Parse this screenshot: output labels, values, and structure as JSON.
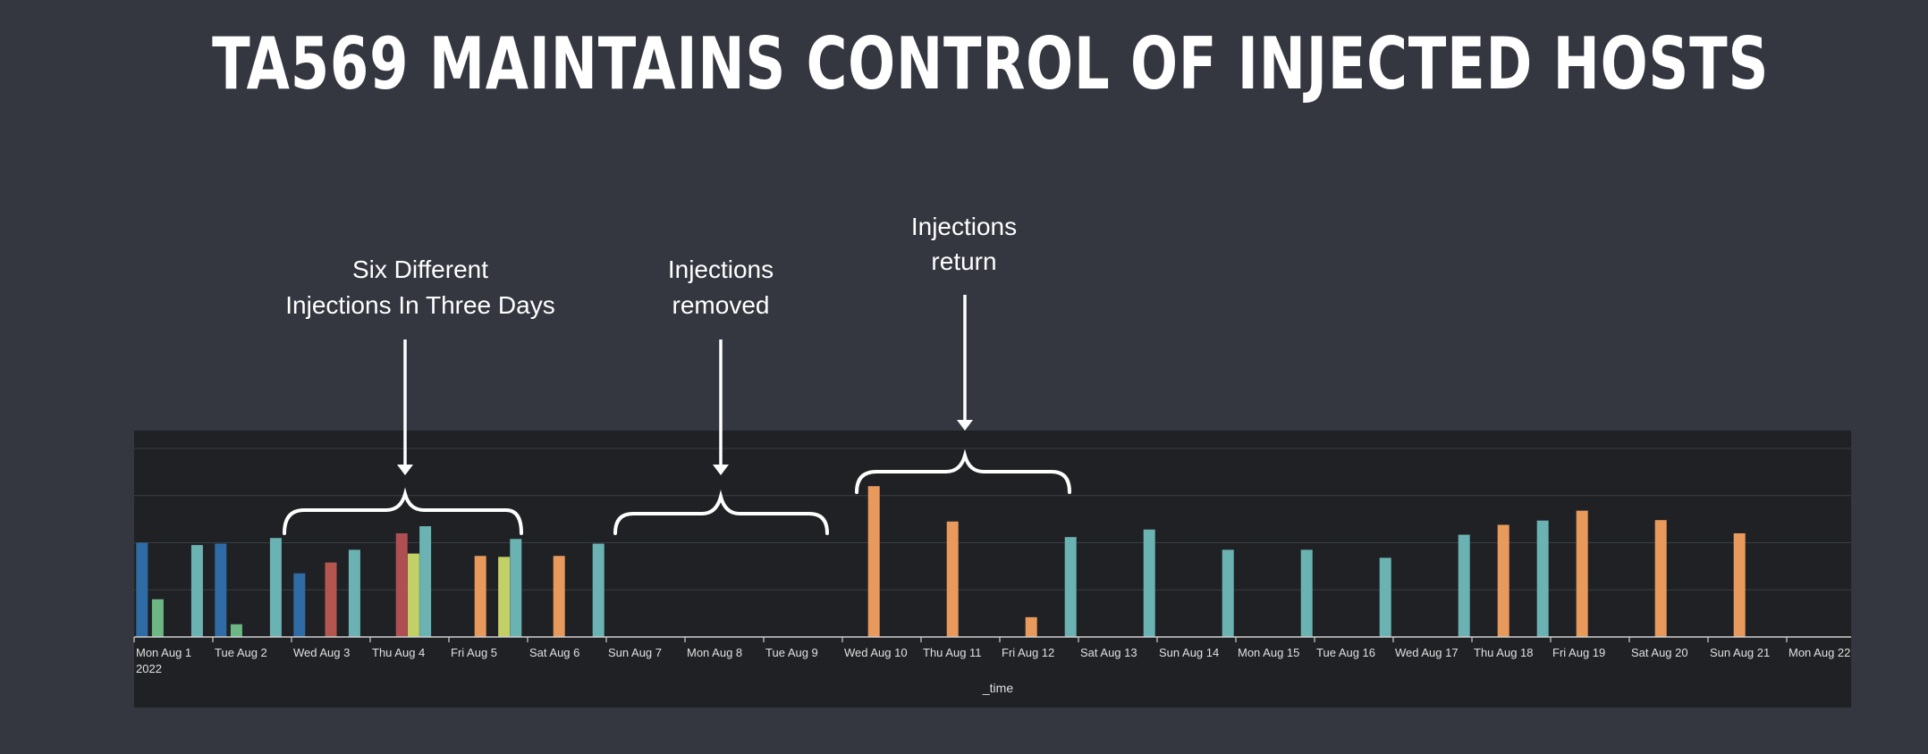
{
  "header": {
    "title": "TA569 MAINTAINS CONTROL OF INJECTED HOSTS"
  },
  "annotations": [
    {
      "lines": [
        "Six Different",
        "Injections In Three Days"
      ]
    },
    {
      "lines": [
        "Injections",
        "removed"
      ]
    },
    {
      "lines": [
        "Injections",
        "return"
      ]
    }
  ],
  "chart_data": {
    "type": "bar",
    "title": "TA569 MAINTAINS CONTROL OF INJECTED HOSTS",
    "xlabel": "_time",
    "ylabel": "",
    "grid": true,
    "ylim": [
      0,
      4
    ],
    "x_ticks": [
      {
        "day": 1,
        "label": "Mon Aug 1",
        "sub": "2022"
      },
      {
        "day": 2,
        "label": "Tue Aug 2"
      },
      {
        "day": 3,
        "label": "Wed Aug 3"
      },
      {
        "day": 4,
        "label": "Thu Aug 4"
      },
      {
        "day": 5,
        "label": "Fri Aug 5"
      },
      {
        "day": 6,
        "label": "Sat Aug 6"
      },
      {
        "day": 7,
        "label": "Sun Aug 7"
      },
      {
        "day": 8,
        "label": "Mon Aug 8"
      },
      {
        "day": 9,
        "label": "Tue Aug 9"
      },
      {
        "day": 10,
        "label": "Wed Aug 10"
      },
      {
        "day": 11,
        "label": "Thu Aug 11"
      },
      {
        "day": 12,
        "label": "Fri Aug 12"
      },
      {
        "day": 13,
        "label": "Sat Aug 13"
      },
      {
        "day": 14,
        "label": "Sun Aug 14"
      },
      {
        "day": 15,
        "label": "Mon Aug 15"
      },
      {
        "day": 16,
        "label": "Tue Aug 16"
      },
      {
        "day": 17,
        "label": "Wed Aug 17"
      },
      {
        "day": 18,
        "label": "Thu Aug 18"
      },
      {
        "day": 19,
        "label": "Fri Aug 19"
      },
      {
        "day": 20,
        "label": "Sat Aug 20"
      },
      {
        "day": 21,
        "label": "Sun Aug 21"
      },
      {
        "day": 22,
        "label": "Mon Aug 22"
      }
    ],
    "series_colors": {
      "blue": "#2f6ca6",
      "green": "#6cb784",
      "teal": "#6bb3b3",
      "red": "#b35650",
      "darkred": "#b04f52",
      "yellowgreen": "#c2d065",
      "orange": "#e8995c"
    },
    "bars": [
      {
        "day": 1.1,
        "value": 2.0,
        "color": "blue"
      },
      {
        "day": 1.3,
        "value": 0.8,
        "color": "green"
      },
      {
        "day": 1.8,
        "value": 1.95,
        "color": "teal"
      },
      {
        "day": 2.1,
        "value": 1.98,
        "color": "blue"
      },
      {
        "day": 2.3,
        "value": 0.27,
        "color": "green"
      },
      {
        "day": 2.8,
        "value": 2.1,
        "color": "teal"
      },
      {
        "day": 3.1,
        "value": 1.35,
        "color": "blue"
      },
      {
        "day": 3.5,
        "value": 1.58,
        "color": "red"
      },
      {
        "day": 3.8,
        "value": 1.85,
        "color": "teal"
      },
      {
        "day": 4.4,
        "value": 2.2,
        "color": "darkred"
      },
      {
        "day": 4.55,
        "value": 1.77,
        "color": "yellowgreen"
      },
      {
        "day": 4.7,
        "value": 2.35,
        "color": "teal"
      },
      {
        "day": 5.4,
        "value": 1.72,
        "color": "orange"
      },
      {
        "day": 5.7,
        "value": 1.7,
        "color": "yellowgreen"
      },
      {
        "day": 5.85,
        "value": 2.08,
        "color": "teal"
      },
      {
        "day": 6.4,
        "value": 1.72,
        "color": "orange"
      },
      {
        "day": 6.9,
        "value": 1.98,
        "color": "teal"
      },
      {
        "day": 10.4,
        "value": 3.2,
        "color": "orange"
      },
      {
        "day": 11.4,
        "value": 2.45,
        "color": "orange"
      },
      {
        "day": 12.4,
        "value": 0.42,
        "color": "orange"
      },
      {
        "day": 12.9,
        "value": 2.12,
        "color": "teal"
      },
      {
        "day": 13.9,
        "value": 2.28,
        "color": "teal"
      },
      {
        "day": 14.9,
        "value": 1.85,
        "color": "teal"
      },
      {
        "day": 15.9,
        "value": 1.85,
        "color": "teal"
      },
      {
        "day": 16.9,
        "value": 1.68,
        "color": "teal"
      },
      {
        "day": 17.9,
        "value": 2.17,
        "color": "teal"
      },
      {
        "day": 18.4,
        "value": 2.38,
        "color": "orange"
      },
      {
        "day": 18.9,
        "value": 2.47,
        "color": "teal"
      },
      {
        "day": 19.4,
        "value": 2.68,
        "color": "orange"
      },
      {
        "day": 20.4,
        "value": 2.48,
        "color": "orange"
      },
      {
        "day": 21.4,
        "value": 2.2,
        "color": "orange"
      }
    ]
  }
}
